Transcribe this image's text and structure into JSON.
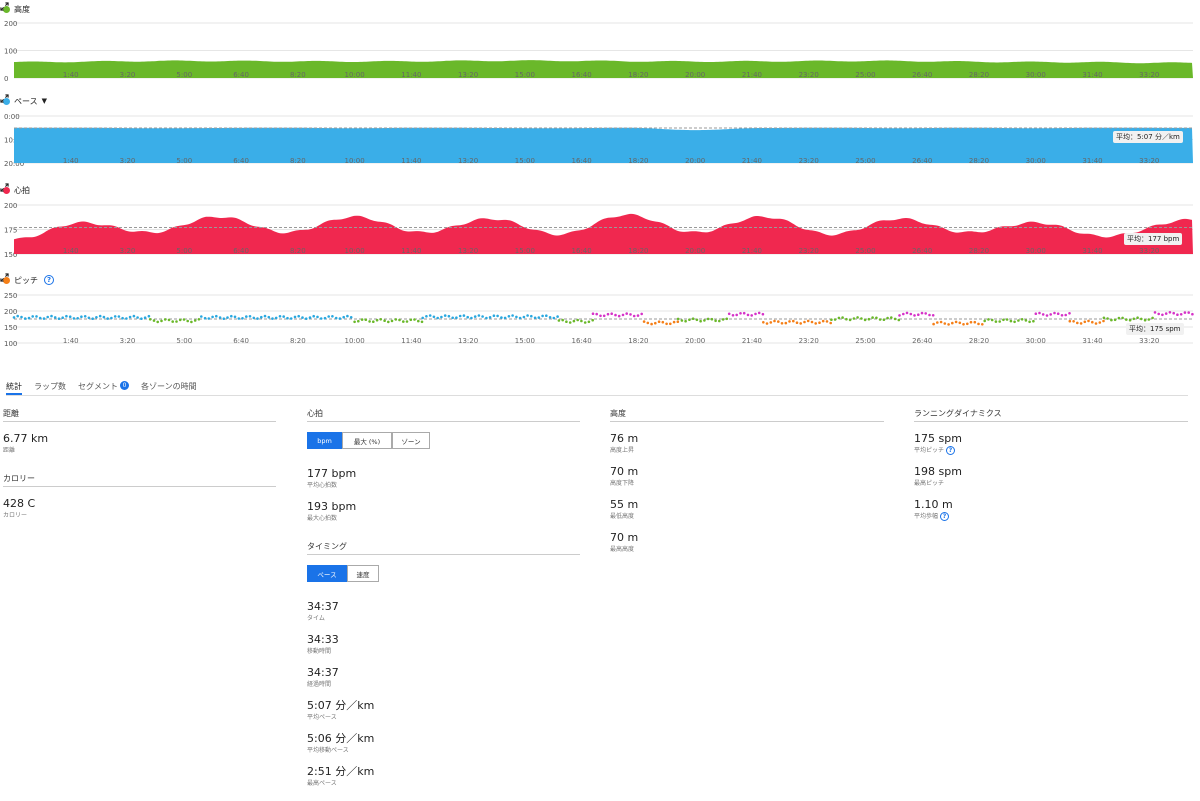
{
  "x_ticks": [
    "1:40",
    "3:20",
    "5:00",
    "6:40",
    "8:20",
    "10:00",
    "11:40",
    "13:20",
    "15:00",
    "16:40",
    "18:20",
    "20:00",
    "21:40",
    "23:20",
    "25:00",
    "26:40",
    "28:20",
    "30:00",
    "31:40",
    "33:20"
  ],
  "charts": {
    "altitude": {
      "title": "高度",
      "color": "#6ab82a",
      "yticks": [
        "200",
        "100",
        "0"
      ]
    },
    "pace": {
      "title": "ペース",
      "caret": "▼",
      "color": "#3aaee8",
      "yticks": [
        "0:00",
        "10:00",
        "20:00"
      ],
      "avg_label": "平均：5:07 分／km"
    },
    "heartrate": {
      "title": "心拍",
      "color": "#f0284f",
      "yticks": [
        "200",
        "175",
        "150"
      ],
      "avg_label": "平均：177 bpm"
    },
    "cadence": {
      "title": "ピッチ",
      "color": "#f57f17",
      "yticks": [
        "250",
        "200",
        "150",
        "100"
      ],
      "avg_label": "平均：175 spm"
    }
  },
  "chart_data": [
    {
      "type": "area",
      "title": "高度",
      "ylim": [
        0,
        200
      ],
      "x_minutes": [
        0,
        5,
        10,
        15,
        20,
        25,
        30,
        34.6
      ],
      "values": [
        58,
        62,
        60,
        63,
        60,
        62,
        58,
        55
      ]
    },
    {
      "type": "area",
      "title": "ペース",
      "ylim": [
        "0:00",
        "20:00"
      ],
      "x_minutes": [
        0,
        2,
        4,
        8,
        10,
        12,
        16,
        18,
        20,
        22,
        24,
        26,
        28,
        30,
        32,
        34.6
      ],
      "values_min_per_km": [
        5.0,
        5.0,
        5.2,
        5.0,
        5.2,
        5.0,
        5.2,
        5.0,
        6.0,
        5.1,
        5.0,
        5.2,
        5.0,
        5.2,
        5.0,
        5.07
      ],
      "average": "5:07 分／km"
    },
    {
      "type": "area",
      "title": "心拍",
      "ylim": [
        150,
        200
      ],
      "x_minutes": [
        0,
        2,
        4,
        6,
        8,
        10,
        12,
        14,
        16,
        18,
        20,
        22,
        24,
        26,
        28,
        30,
        32,
        34.6
      ],
      "values": [
        165,
        182,
        172,
        188,
        172,
        188,
        172,
        186,
        170,
        190,
        172,
        188,
        170,
        186,
        172,
        182,
        168,
        185
      ],
      "average": "177 bpm"
    },
    {
      "type": "scatter",
      "title": "ピッチ",
      "ylim": [
        100,
        250
      ],
      "average": "175 spm",
      "legend": [
        "blue ~180",
        "green ~170",
        "orange ~160",
        "purple ~190"
      ]
    }
  ],
  "tabs": [
    "統計",
    "ラップ数",
    "セグメント",
    "各ゾーンの時間"
  ],
  "segment_badge": "0",
  "distance": {
    "title": "距離",
    "value": "6.77 km",
    "label": "距離"
  },
  "calories": {
    "title": "カロリー",
    "value": "428 C",
    "label": "カロリー"
  },
  "heart": {
    "title": "心拍",
    "toggle": [
      "bpm",
      "最大 (%)",
      "ゾーン"
    ],
    "avg_value": "177 bpm",
    "avg_label": "平均心拍数",
    "max_value": "193 bpm",
    "max_label": "最大心拍数"
  },
  "timing": {
    "title": "タイミング",
    "toggle": [
      "ペース",
      "速度"
    ],
    "items": [
      {
        "value": "34:37",
        "label": "タイム"
      },
      {
        "value": "34:33",
        "label": "移動時間"
      },
      {
        "value": "34:37",
        "label": "経過時間"
      },
      {
        "value": "5:07 分／km",
        "label": "平均ペース"
      },
      {
        "value": "5:06 分／km",
        "label": "平均移動ペース"
      },
      {
        "value": "2:51 分／km",
        "label": "最高ペース"
      }
    ]
  },
  "elevation": {
    "title": "高度",
    "items": [
      {
        "value": "76 m",
        "label": "高度上昇"
      },
      {
        "value": "70 m",
        "label": "高度下降"
      },
      {
        "value": "55 m",
        "label": "最低高度"
      },
      {
        "value": "70 m",
        "label": "最高高度"
      }
    ]
  },
  "dynamics": {
    "title": "ランニングダイナミクス",
    "items": [
      {
        "value": "175 spm",
        "label": "平均ピッチ",
        "help": "?"
      },
      {
        "value": "198 spm",
        "label": "最高ピッチ"
      },
      {
        "value": "1.10 m",
        "label": "平均歩幅",
        "help": "?"
      }
    ]
  }
}
